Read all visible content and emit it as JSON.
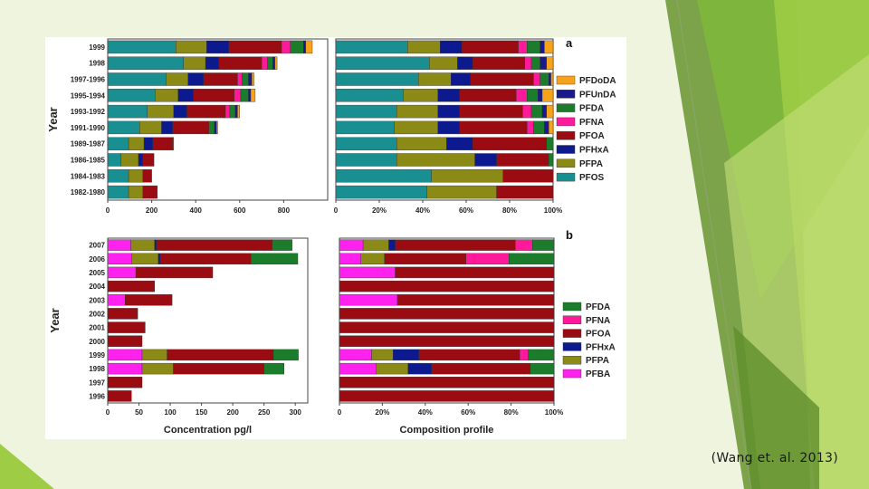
{
  "slide": {
    "citation": "(Wang et. al. 2013)"
  },
  "colors": {
    "PFDoDA": "#f7a21b",
    "PFUnDA": "#1a1a8c",
    "PFDA": "#1b7d2b",
    "PFNA": "#ff1a9a",
    "PFOA": "#9b0c12",
    "PFHxA": "#0d1a8f",
    "PFPA": "#8b8a17",
    "PFOS": "#1a8f92",
    "PFBA": "#ff22ee"
  },
  "chart_data": [
    {
      "id": "a-concentration",
      "type": "bar",
      "orientation": "horizontal",
      "stacked": true,
      "panel": "a",
      "ylabel": "Year",
      "xlim": [
        0,
        1000
      ],
      "xticks": [
        "0",
        "200",
        "400",
        "600",
        "800"
      ],
      "categories": [
        "1999",
        "1998",
        "1997-1996",
        "1995-1994",
        "1993-1992",
        "1991-1990",
        "1989-1987",
        "1986-1985",
        "1984-1983",
        "1982-1980"
      ],
      "series": [
        {
          "name": "PFOS",
          "values": [
            310,
            345,
            265,
            215,
            180,
            145,
            95,
            60,
            95,
            95
          ]
        },
        {
          "name": "PFPA",
          "values": [
            140,
            100,
            100,
            105,
            120,
            100,
            70,
            80,
            65,
            65
          ]
        },
        {
          "name": "PFHxA",
          "values": [
            100,
            60,
            70,
            70,
            60,
            50,
            40,
            20,
            0,
            0
          ]
        },
        {
          "name": "PFOA",
          "values": [
            240,
            195,
            155,
            185,
            175,
            165,
            90,
            50,
            40,
            65
          ]
        },
        {
          "name": "PFNA",
          "values": [
            40,
            25,
            20,
            30,
            20,
            0,
            0,
            0,
            0,
            0
          ]
        },
        {
          "name": "PFDA",
          "values": [
            60,
            25,
            30,
            35,
            25,
            25,
            5,
            0,
            0,
            0
          ]
        },
        {
          "name": "PFUnDA",
          "values": [
            10,
            10,
            15,
            10,
            10,
            10,
            0,
            0,
            0,
            0
          ]
        },
        {
          "name": "PFDoDA",
          "values": [
            30,
            10,
            10,
            20,
            10,
            5,
            0,
            0,
            0,
            0
          ]
        }
      ]
    },
    {
      "id": "a-composition",
      "type": "bar",
      "orientation": "horizontal",
      "stacked": true,
      "panel": "a",
      "xlim": [
        0,
        100
      ],
      "xticks": [
        "0",
        "20%",
        "40%",
        "60%",
        "80%",
        "100%"
      ],
      "categories": [
        "1999",
        "1998",
        "1997-1996",
        "1995-1994",
        "1993-1992",
        "1991-1990",
        "1989-1987",
        "1986-1985",
        "1984-1983",
        "1982-1980"
      ],
      "legend": [
        "PFDoDA",
        "PFUnDA",
        "PFDA",
        "PFNA",
        "PFOA",
        "PFHxA",
        "PFPA",
        "PFOS"
      ],
      "series": [
        {
          "name": "PFOS",
          "values": [
            33,
            43,
            38,
            31,
            28,
            27,
            28,
            28,
            44,
            42
          ]
        },
        {
          "name": "PFPA",
          "values": [
            15,
            13,
            15,
            16,
            19,
            20,
            23,
            36,
            33,
            32
          ]
        },
        {
          "name": "PFHxA",
          "values": [
            10,
            7,
            9,
            10,
            10,
            10,
            12,
            10,
            0,
            0
          ]
        },
        {
          "name": "PFOA",
          "values": [
            26,
            24,
            29,
            26,
            29,
            31,
            34,
            24,
            23,
            26
          ]
        },
        {
          "name": "PFNA",
          "values": [
            4,
            3,
            3,
            5,
            4,
            3,
            0,
            0,
            0,
            0
          ]
        },
        {
          "name": "PFDA",
          "values": [
            6,
            4,
            4,
            5,
            5,
            5,
            3,
            2,
            0,
            0
          ]
        },
        {
          "name": "PFUnDA",
          "values": [
            2,
            3,
            1,
            2,
            2,
            2,
            0,
            0,
            0,
            0
          ]
        },
        {
          "name": "PFDoDA",
          "values": [
            4,
            3,
            1,
            5,
            3,
            2,
            0,
            0,
            0,
            0
          ]
        }
      ]
    },
    {
      "id": "b-concentration",
      "type": "bar",
      "orientation": "horizontal",
      "stacked": true,
      "panel": "b",
      "ylabel": "Year",
      "xlabel": "Concentration pg/l",
      "xlim": [
        0,
        320
      ],
      "xticks": [
        "0",
        "50",
        "100",
        "150",
        "200",
        "250",
        "300"
      ],
      "categories": [
        "2007",
        "2006",
        "2005",
        "2004",
        "2003",
        "2002",
        "2001",
        "2000",
        "1999",
        "1998",
        "1997",
        "1996"
      ],
      "series": [
        {
          "name": "PFBA",
          "values": [
            37,
            38,
            45,
            0,
            28,
            0,
            0,
            0,
            55,
            55,
            0,
            0
          ]
        },
        {
          "name": "PFPA",
          "values": [
            38,
            43,
            0,
            0,
            0,
            0,
            0,
            0,
            40,
            50,
            0,
            0
          ]
        },
        {
          "name": "PFHxA",
          "values": [
            3,
            3,
            0,
            0,
            0,
            0,
            0,
            0,
            0,
            0,
            0,
            0
          ]
        },
        {
          "name": "PFOA",
          "values": [
            185,
            145,
            123,
            75,
            75,
            48,
            60,
            55,
            170,
            145,
            55,
            38
          ]
        },
        {
          "name": "PFNA",
          "values": [
            0,
            0,
            0,
            0,
            0,
            0,
            0,
            0,
            0,
            0,
            0,
            0
          ]
        },
        {
          "name": "PFDA",
          "values": [
            32,
            75,
            0,
            0,
            0,
            0,
            0,
            0,
            40,
            32,
            0,
            0
          ]
        }
      ]
    },
    {
      "id": "b-composition",
      "type": "bar",
      "orientation": "horizontal",
      "stacked": true,
      "panel": "b",
      "xlabel": "Composition profile",
      "xlim": [
        0,
        100
      ],
      "xticks": [
        "0",
        "20%",
        "40%",
        "60%",
        "80%",
        "100%"
      ],
      "categories": [
        "2007",
        "2006",
        "2005",
        "2004",
        "2003",
        "2002",
        "2001",
        "2000",
        "1999",
        "1998",
        "1997",
        "1996"
      ],
      "legend": [
        "PFDA",
        "PFNA",
        "PFOA",
        "PFHxA",
        "PFPA",
        "PFBA"
      ],
      "series": [
        {
          "name": "PFBA",
          "values": [
            11,
            10,
            26,
            0,
            27,
            0,
            0,
            0,
            15,
            17,
            0,
            0
          ]
        },
        {
          "name": "PFPA",
          "values": [
            12,
            11,
            0,
            0,
            0,
            0,
            0,
            0,
            10,
            15,
            0,
            0
          ]
        },
        {
          "name": "PFHxA",
          "values": [
            3,
            0,
            0,
            0,
            0,
            0,
            0,
            0,
            12,
            11,
            0,
            0
          ]
        },
        {
          "name": "PFOA",
          "values": [
            56,
            38,
            74,
            100,
            73,
            100,
            100,
            100,
            47,
            46,
            100,
            100
          ]
        },
        {
          "name": "PFNA",
          "values": [
            8,
            20,
            0,
            0,
            0,
            0,
            0,
            0,
            4,
            0,
            0,
            0
          ]
        },
        {
          "name": "PFDA",
          "values": [
            10,
            21,
            0,
            0,
            0,
            0,
            0,
            0,
            12,
            11,
            0,
            0
          ]
        }
      ]
    }
  ],
  "labels": {
    "panel_a": "a",
    "panel_b": "b"
  }
}
